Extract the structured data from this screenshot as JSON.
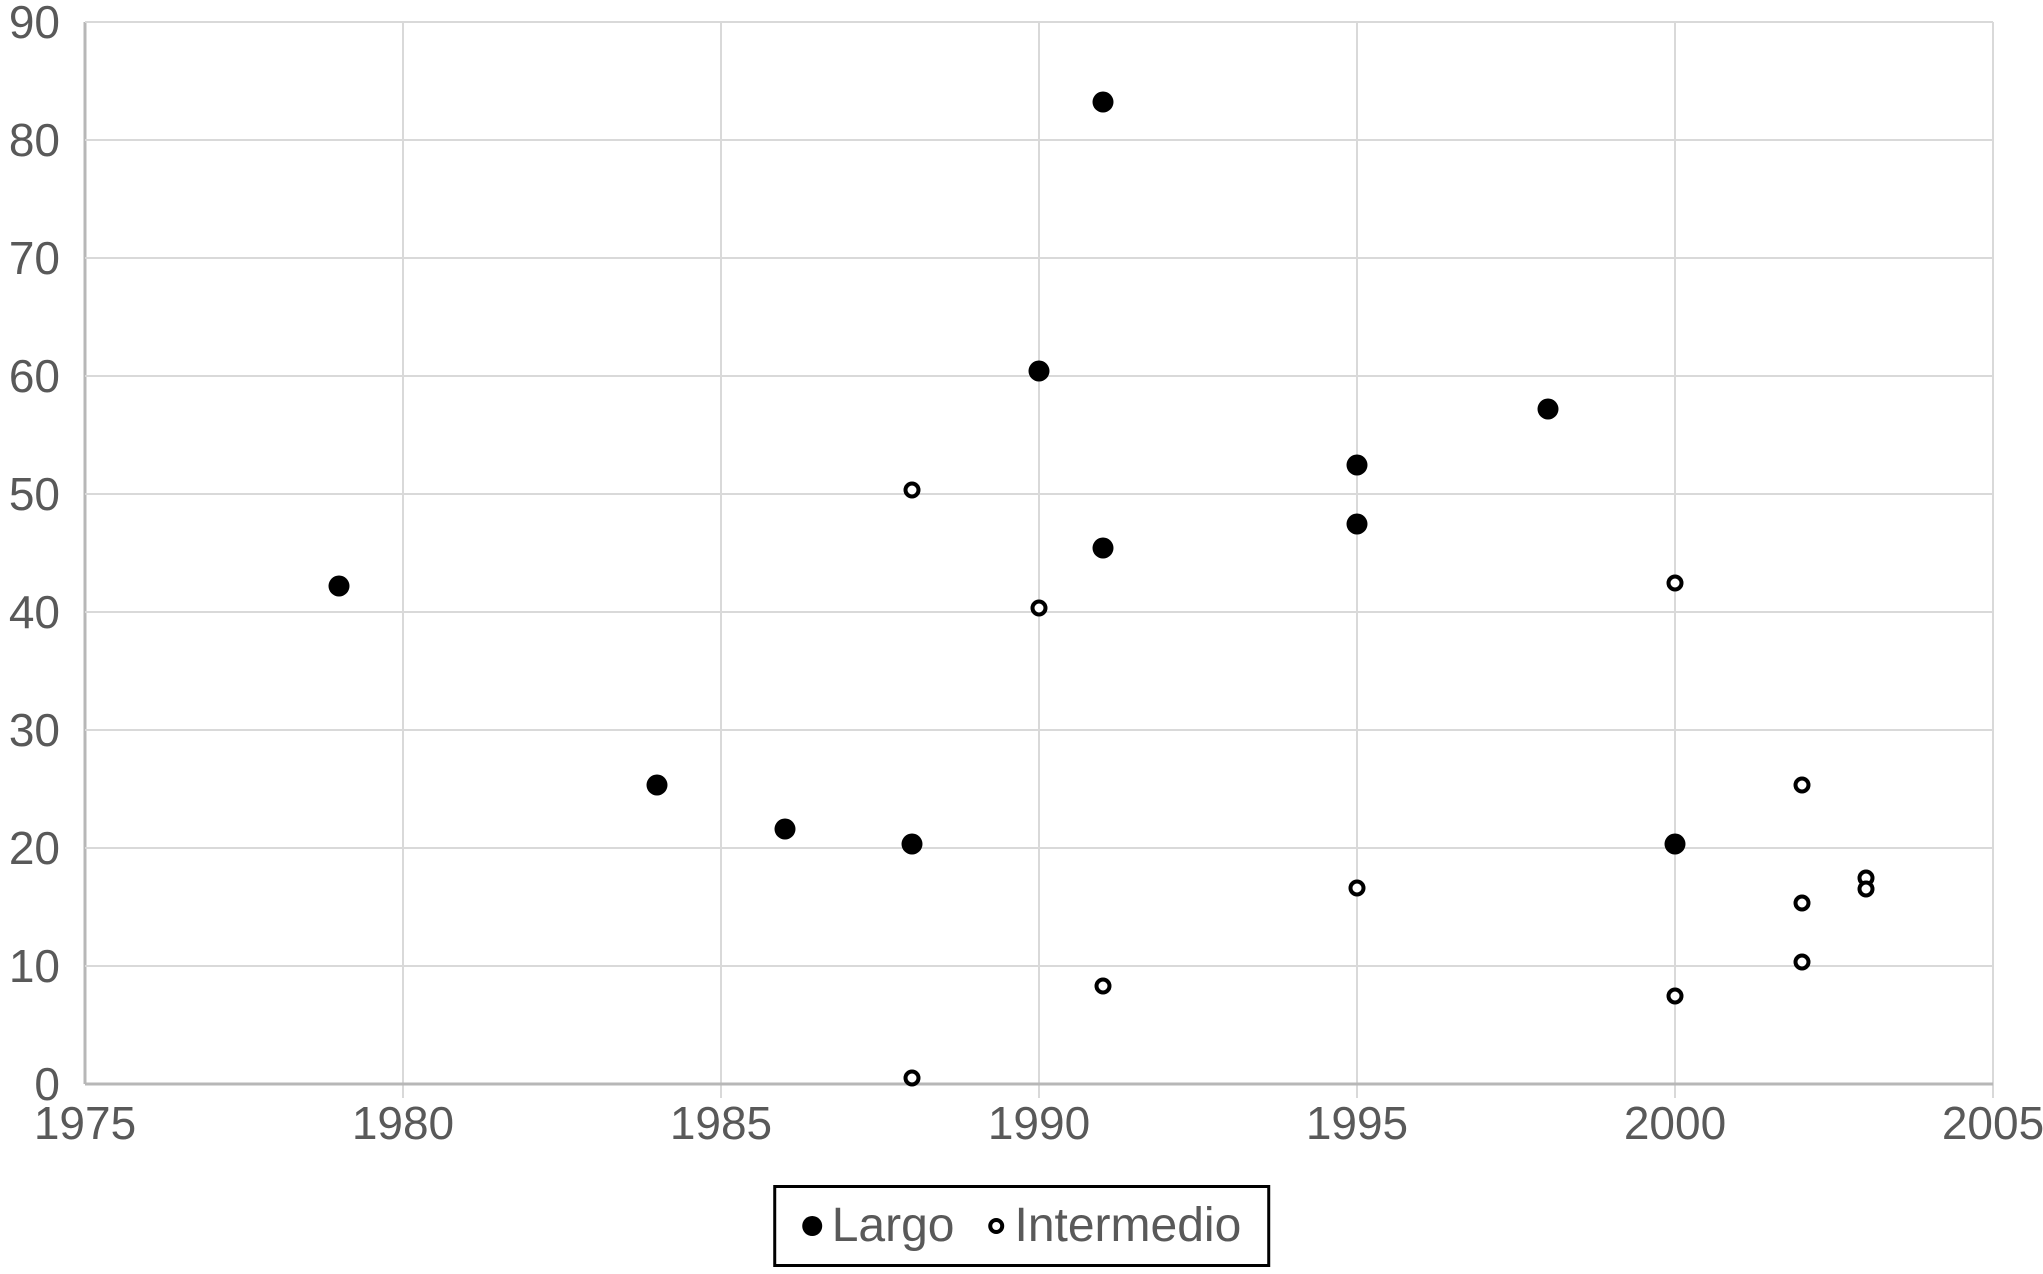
{
  "colors": {
    "background": "#ffffff",
    "gridline": "#d9d9d9",
    "axis_line": "#b7b7b7",
    "tick_label": "#595959",
    "marker": "#000000",
    "legend_border": "#000000",
    "legend_text": "#595959"
  },
  "chart_data": {
    "type": "scatter",
    "title": "",
    "xlabel": "",
    "ylabel": "",
    "xlim": [
      1975,
      2005
    ],
    "ylim": [
      0,
      90
    ],
    "x_ticks": [
      1975,
      1980,
      1985,
      1990,
      1995,
      2000,
      2005
    ],
    "y_ticks": [
      0,
      10,
      20,
      30,
      40,
      50,
      60,
      70,
      80,
      90
    ],
    "grid": true,
    "legend_position": "bottom-center",
    "series": [
      {
        "name": "Largo",
        "marker": "filled-circle",
        "color": "#000000",
        "points": [
          [
            1979,
            42.2
          ],
          [
            1984,
            25.3
          ],
          [
            1986,
            21.6
          ],
          [
            1988,
            20.3
          ],
          [
            1990,
            60.4
          ],
          [
            1991,
            83.2
          ],
          [
            1991,
            45.4
          ],
          [
            1995,
            52.5
          ],
          [
            1995,
            47.5
          ],
          [
            1998,
            57.2
          ],
          [
            2000,
            20.3
          ]
        ]
      },
      {
        "name": "Intermedio",
        "marker": "open-circle",
        "color": "#000000",
        "points": [
          [
            1988,
            50.3
          ],
          [
            1988,
            0.5
          ],
          [
            1990,
            40.3
          ],
          [
            1991,
            8.3
          ],
          [
            1995,
            16.6
          ],
          [
            2000,
            42.5
          ],
          [
            2000,
            7.5
          ],
          [
            2002,
            25.3
          ],
          [
            2002,
            15.3
          ],
          [
            2002,
            10.3
          ],
          [
            2003,
            17.5
          ],
          [
            2003,
            16.5
          ]
        ]
      }
    ]
  }
}
